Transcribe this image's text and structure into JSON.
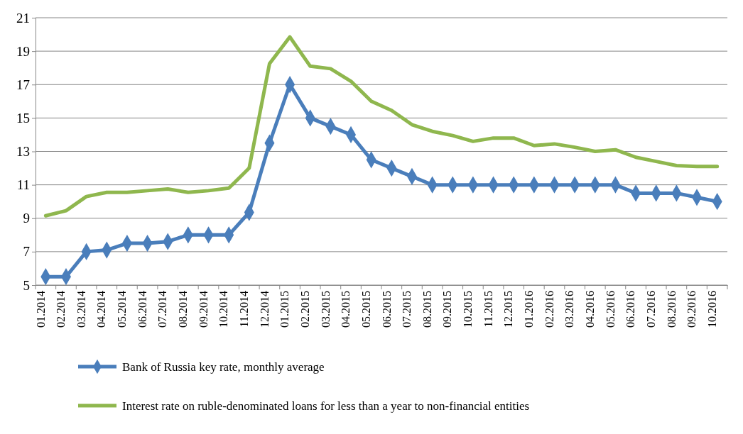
{
  "chart_data": {
    "type": "line",
    "categories": [
      "01.2014",
      "02.2014",
      "03.2014",
      "04.2014",
      "05.2014",
      "06.2014",
      "07.2014",
      "08.2014",
      "09.2014",
      "10.2014",
      "11.2014",
      "12.2014",
      "01.2015",
      "02.2015",
      "03.2015",
      "04.2015",
      "05.2015",
      "06.2015",
      "07.2015",
      "08.2015",
      "09.2015",
      "10.2015",
      "11.2015",
      "12.2015",
      "01.2016",
      "02.2016",
      "03.2016",
      "04.2016",
      "05.2016",
      "06.2016",
      "07.2016",
      "08.2016",
      "09.2016",
      "10.2016"
    ],
    "series": [
      {
        "name": "Bank of Russia key rate, monthly average",
        "color": "#4a7ebb",
        "marker": "diamond",
        "values": [
          5.5,
          5.5,
          7,
          7.1,
          7.5,
          7.5,
          7.6,
          8,
          8,
          8,
          9.35,
          13.5,
          17,
          15,
          14.5,
          14,
          12.5,
          12,
          11.5,
          11,
          11,
          11,
          11,
          11,
          11,
          11,
          11,
          11,
          11,
          10.5,
          10.5,
          10.5,
          10.25,
          10
        ]
      },
      {
        "name": "Interest rate on ruble-denominated loans for less than a year to non-financial entities",
        "color": "#8fb74e",
        "marker": "none",
        "values": [
          9.15,
          9.45,
          10.3,
          10.55,
          10.55,
          10.65,
          10.75,
          10.55,
          10.65,
          10.8,
          12,
          18.25,
          19.85,
          18.1,
          17.95,
          17.2,
          16,
          15.45,
          14.6,
          14.2,
          13.95,
          13.6,
          13.8,
          13.8,
          13.35,
          13.45,
          13.25,
          13,
          13.1,
          12.65,
          12.4,
          12.15,
          12.1,
          12.1
        ]
      }
    ],
    "ylim": [
      5,
      21
    ],
    "yticks": [
      5,
      7,
      9,
      11,
      13,
      15,
      17,
      19,
      21
    ],
    "grid": "y",
    "legend": "bottom",
    "line_style": "solid"
  }
}
